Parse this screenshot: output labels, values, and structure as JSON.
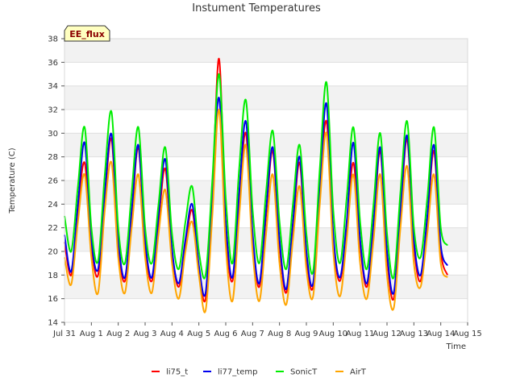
{
  "chart_data": {
    "type": "line",
    "title": "Instument Temperatures",
    "xlabel": "Time",
    "ylabel": "Temperature (C)",
    "ylim": [
      14,
      38
    ],
    "yticks": [
      14,
      16,
      18,
      20,
      22,
      24,
      26,
      28,
      30,
      32,
      34,
      36,
      38
    ],
    "xlim": [
      0,
      15
    ],
    "xticks": [
      0,
      1,
      2,
      3,
      4,
      5,
      6,
      7,
      8,
      9,
      10,
      11,
      12,
      13,
      14,
      15
    ],
    "xtick_labels": [
      "Jul 31",
      "Aug 1",
      "Aug 2",
      "Aug 3",
      "Aug 4",
      "Aug 5",
      "Aug 6",
      "Aug 7",
      "Aug 8",
      "Aug 9",
      "Aug 10",
      "Aug 11",
      "Aug 12",
      "Aug 13",
      "Aug 14",
      "Aug 15"
    ],
    "x_axis_note": "x values are days since Jul 31 00:00",
    "grid": "horizontal bands",
    "legend_position": "bottom",
    "annotation": "EE_flux",
    "x": [
      0,
      0.25,
      0.5,
      0.75,
      1.0,
      1.25,
      1.5,
      1.75,
      2.0,
      2.25,
      2.5,
      2.75,
      3.0,
      3.25,
      3.5,
      3.75,
      4.0,
      4.25,
      4.5,
      4.75,
      5.0,
      5.25,
      5.5,
      5.75,
      6.0,
      6.25,
      6.5,
      6.75,
      7.0,
      7.25,
      7.5,
      7.75,
      8.0,
      8.25,
      8.5,
      8.75,
      9.0,
      9.25,
      9.5,
      9.75,
      10.0,
      10.25,
      10.5,
      10.75,
      11.0,
      11.25,
      11.5,
      11.75,
      12.0,
      12.25,
      12.5,
      12.75,
      13.0,
      13.25,
      13.5,
      13.75,
      14.0,
      14.25
    ],
    "series": [
      {
        "name": "li75_t",
        "color": "#ff0000",
        "values": [
          20.8,
          18.0,
          23.5,
          27.5,
          20.5,
          18.0,
          24.5,
          29.5,
          20.5,
          17.5,
          23.0,
          28.8,
          20.5,
          17.5,
          22.5,
          27.0,
          20.0,
          17.0,
          20.5,
          23.5,
          18.5,
          16.0,
          24.5,
          36.3,
          22.0,
          17.5,
          24.5,
          30.0,
          21.0,
          17.0,
          23.0,
          28.5,
          20.5,
          16.5,
          22.0,
          27.5,
          19.5,
          17.0,
          25.0,
          31.0,
          21.0,
          17.5,
          22.0,
          27.5,
          20.5,
          17.0,
          22.0,
          28.5,
          19.5,
          16.0,
          23.0,
          29.5,
          20.5,
          17.5,
          22.5,
          28.5,
          20.0,
          18.0
        ]
      },
      {
        "name": "li77_temp",
        "color": "#0000ee",
        "values": [
          21.4,
          18.3,
          24.0,
          29.2,
          21.0,
          18.5,
          25.0,
          29.9,
          21.0,
          17.8,
          23.5,
          29.0,
          21.0,
          17.8,
          23.0,
          27.8,
          20.2,
          17.3,
          21.0,
          24.0,
          18.8,
          16.5,
          25.0,
          33.0,
          22.5,
          17.8,
          25.0,
          31.0,
          21.5,
          17.3,
          23.5,
          28.8,
          21.0,
          16.8,
          22.5,
          28.0,
          20.0,
          17.3,
          25.5,
          32.5,
          21.5,
          17.8,
          22.5,
          29.2,
          21.0,
          17.3,
          22.5,
          28.8,
          20.0,
          16.5,
          23.5,
          29.8,
          21.0,
          18.0,
          23.0,
          29.0,
          20.5,
          18.8
        ]
      },
      {
        "name": "SonicT",
        "color": "#00ee00",
        "values": [
          23.0,
          20.0,
          25.5,
          30.5,
          22.0,
          19.2,
          26.5,
          31.8,
          22.0,
          19.0,
          25.0,
          30.5,
          22.0,
          19.0,
          24.0,
          28.8,
          21.5,
          18.5,
          22.5,
          25.5,
          20.0,
          18.0,
          26.0,
          35.0,
          24.5,
          19.0,
          27.0,
          32.8,
          23.5,
          19.0,
          25.0,
          30.2,
          22.5,
          18.5,
          24.0,
          29.0,
          21.5,
          18.3,
          27.0,
          34.3,
          23.5,
          19.0,
          24.5,
          30.5,
          22.5,
          18.5,
          24.0,
          30.0,
          21.5,
          17.8,
          25.0,
          31.0,
          22.0,
          19.5,
          24.5,
          30.5,
          22.0,
          20.5
        ]
      },
      {
        "name": "AirT",
        "color": "#ffa500",
        "values": [
          19.5,
          17.2,
          22.5,
          26.5,
          19.5,
          16.5,
          23.5,
          27.5,
          19.5,
          16.5,
          22.0,
          26.5,
          19.5,
          16.5,
          21.5,
          25.2,
          19.0,
          16.0,
          20.0,
          22.5,
          18.0,
          15.0,
          23.0,
          32.0,
          20.5,
          15.8,
          23.0,
          29.0,
          20.0,
          15.8,
          21.5,
          26.5,
          19.0,
          15.5,
          21.0,
          25.5,
          18.5,
          16.2,
          24.0,
          30.0,
          20.0,
          16.2,
          21.0,
          26.5,
          19.0,
          16.0,
          21.0,
          26.5,
          18.0,
          15.2,
          22.0,
          27.2,
          19.0,
          17.0,
          21.5,
          26.5,
          19.0,
          17.8
        ]
      }
    ]
  }
}
